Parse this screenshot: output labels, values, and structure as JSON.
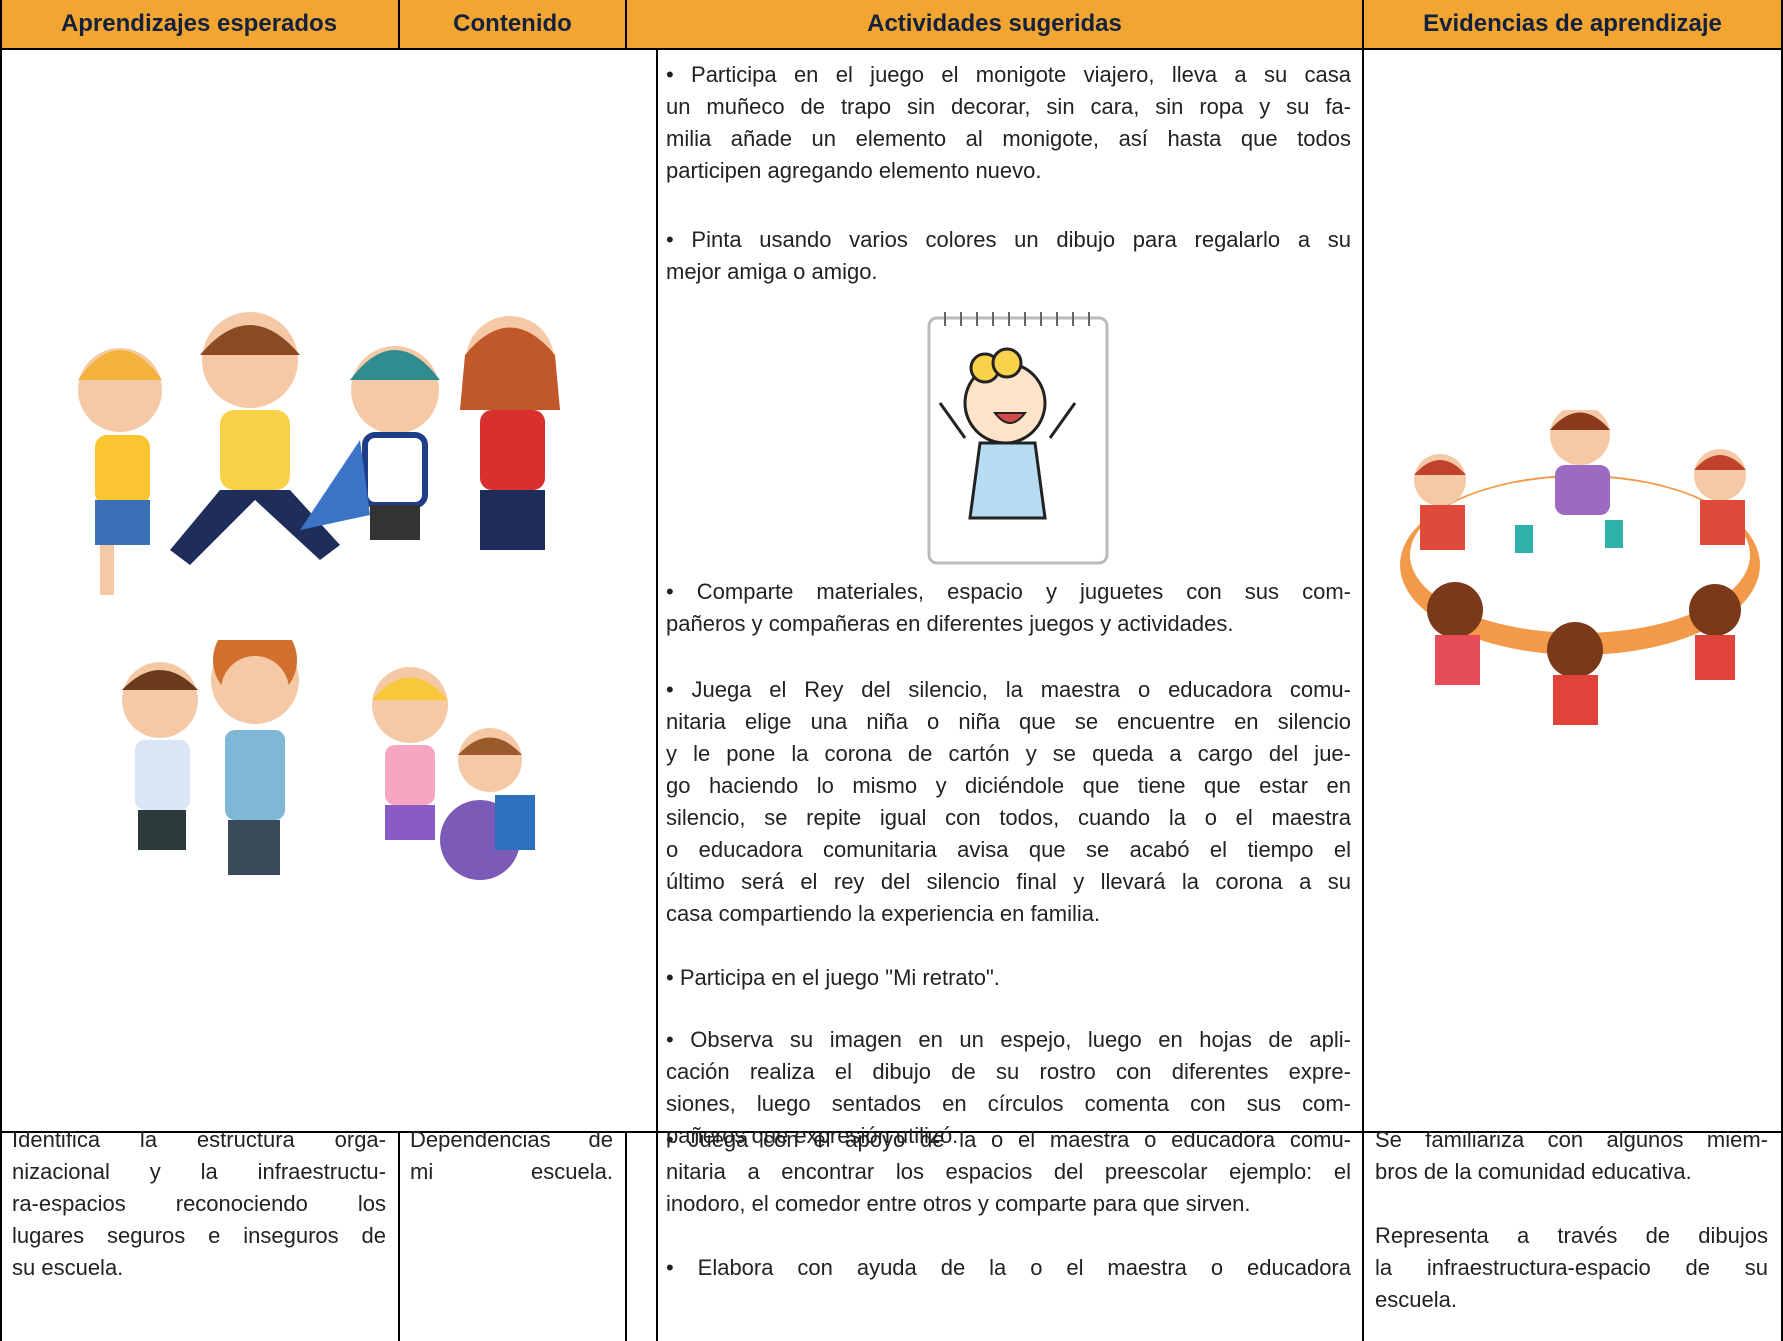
{
  "table": {
    "headers": [
      "Aprendizajes esperados",
      "Contenido",
      "Actividades sugeridas",
      "Evidencias de aprendizaje"
    ],
    "rows": [
      {
        "actividades": [
          [
            "• Participa en el juego el monigote viajero, lleva a su casa",
            "un muñeco de trapo sin decorar, sin cara, sin ropa y su fa-",
            "milia añade un elemento al monigote, así hasta que todos",
            "participen agregando elemento nuevo."
          ],
          [
            "• Pinta usando varios colores un dibujo para regalarlo a su",
            "mejor amiga o amigo."
          ],
          [
            "• Comparte materiales, espacio y juguetes con sus com-",
            "pañeros y compañeras en diferentes juegos y actividades."
          ],
          [
            "• Juega el Rey del silencio, la maestra o educadora comu-",
            "nitaria elige una niña o niña que se encuentre en silencio",
            "y le pone la corona de cartón y se queda a cargo del jue-",
            "go haciendo lo mismo y diciéndole que tiene que estar en",
            "silencio, se repite igual con todos, cuando la o el maestra",
            "o educadora comunitaria avisa que se acabó el tiempo el",
            "último será el rey del silencio final y llevará la corona a su",
            "casa compartiendo la experiencia en familia."
          ],
          [
            "• Participa en el juego \"Mi retrato\"."
          ],
          [
            "• Observa su imagen en un espejo, luego en hojas de apli-",
            "cación realiza el dibujo de su rostro con diferentes expre-",
            "siones, luego sentados en círculos comenta con sus com-",
            "pañeros que expresión utilizó."
          ]
        ]
      },
      {
        "aprendizajes": [
          [
            "Identifica la estructura orga-",
            "nizacional y la infraestructu-",
            "ra-espacios reconociendo los",
            "lugares seguros e inseguros de",
            "su escuela."
          ]
        ],
        "contenido": [
          [
            "Dependencias de",
            "mi escuela."
          ]
        ],
        "actividades": [
          [
            "• Juega con el apoyo de la o el maestra o educadora comu-",
            "nitaria a encontrar los espacios del preescolar ejemplo: el",
            "inodoro, el comedor entre otros y comparte para que sirven."
          ],
          [
            "• Elabora con ayuda de la o el maestra o educadora"
          ]
        ],
        "evidencias": [
          [
            "Se familiariza con algunos miem-",
            "bros de la comunidad educativa."
          ],
          [
            "Representa a través de dibujos",
            "la infraestructura-espacio de su",
            "escuela."
          ]
        ]
      }
    ]
  }
}
